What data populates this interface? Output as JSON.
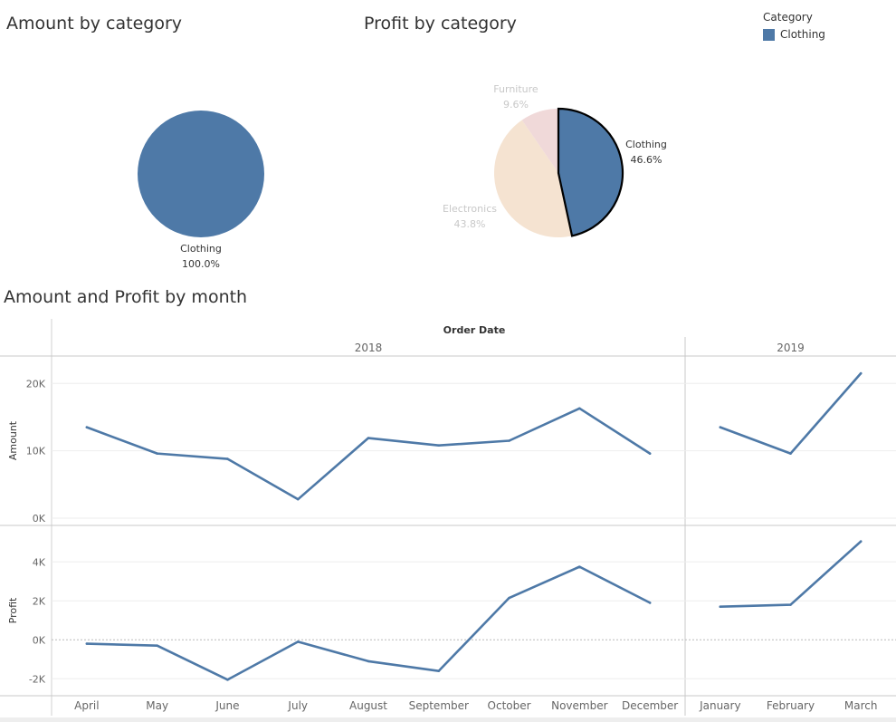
{
  "titles": {
    "amount_by_category": "Amount by category",
    "profit_by_category": "Profit by category",
    "amount_profit_by_month": "Amount and Profit by month"
  },
  "legend": {
    "title": "Category",
    "items": [
      {
        "label": "Clothing",
        "color": "#4e79a7"
      }
    ]
  },
  "colors": {
    "clothing": "#4e79a7",
    "electronics": "#f5e3d1",
    "furniture": "#f0d9d9",
    "faded_label": "#c8c8c8",
    "line": "#4e79a7",
    "grid": "#eeeeee",
    "axis_text": "#666666"
  },
  "chart_data": [
    {
      "type": "pie",
      "title": "Amount by category",
      "slices": [
        {
          "label": "Clothing",
          "value": 100.0,
          "value_label": "100.0%",
          "color": "#4e79a7"
        }
      ]
    },
    {
      "type": "pie",
      "title": "Profit by category",
      "highlighted": "Clothing",
      "slices": [
        {
          "label": "Clothing",
          "value": 46.6,
          "value_label": "46.6%",
          "color": "#4e79a7"
        },
        {
          "label": "Electronics",
          "value": 43.8,
          "value_label": "43.8%",
          "color": "#f5e3d1"
        },
        {
          "label": "Furniture",
          "value": 9.6,
          "value_label": "9.6%",
          "color": "#f0d9d9"
        }
      ]
    },
    {
      "type": "line",
      "title": "Amount and Profit by month",
      "column_header": "Order Date",
      "years": [
        {
          "label": "2018",
          "months": [
            "April",
            "May",
            "June",
            "July",
            "August",
            "September",
            "October",
            "November",
            "December"
          ]
        },
        {
          "label": "2019",
          "months": [
            "January",
            "February",
            "March"
          ]
        }
      ],
      "panes": [
        {
          "ylabel": "Amount",
          "ylim": [
            0,
            23000
          ],
          "yticks": [
            0,
            10000,
            20000
          ],
          "ytick_labels": [
            "0K",
            "10K",
            "20K"
          ],
          "values": [
            13500,
            9600,
            8800,
            2800,
            11900,
            10800,
            11500,
            16300,
            9600,
            13500,
            9600,
            21500
          ]
        },
        {
          "ylabel": "Profit",
          "ylim": [
            -2500,
            5500
          ],
          "yticks": [
            -2000,
            0,
            2000,
            4000
          ],
          "ytick_labels": [
            "-2K",
            "0K",
            "2K",
            "4K"
          ],
          "zero_line": true,
          "values": [
            -200,
            -300,
            -2050,
            -100,
            -1100,
            -1600,
            2150,
            3750,
            1900,
            1700,
            1800,
            5050
          ]
        }
      ]
    }
  ]
}
